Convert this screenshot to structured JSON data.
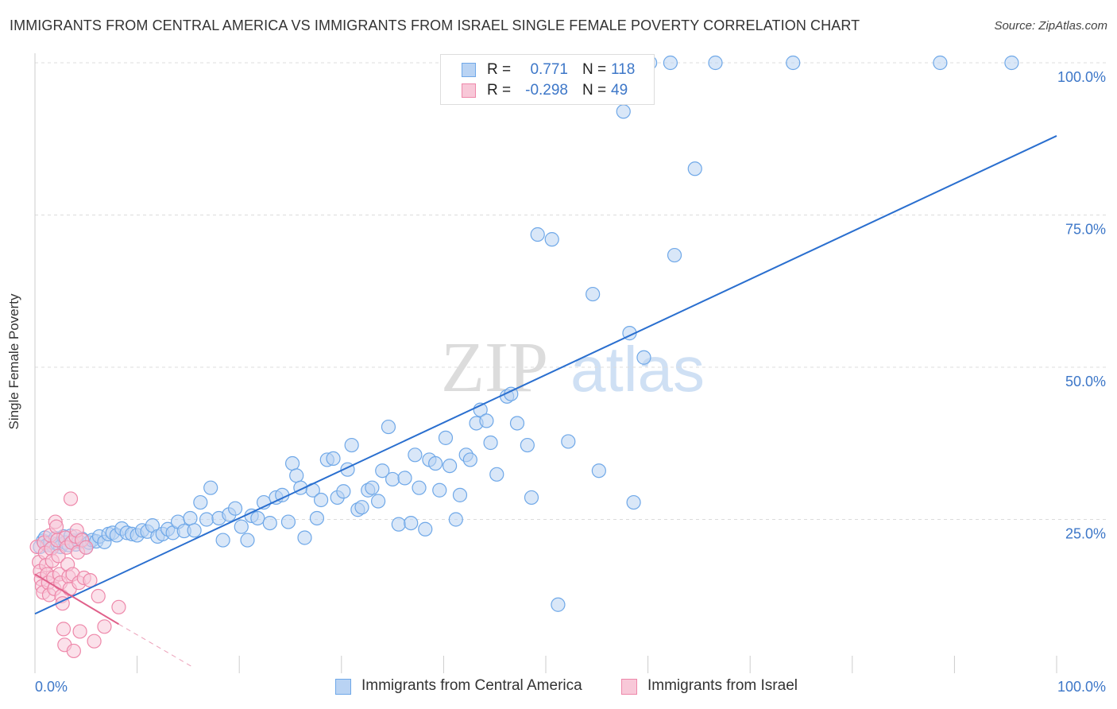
{
  "title": "IMMIGRANTS FROM CENTRAL AMERICA VS IMMIGRANTS FROM ISRAEL SINGLE FEMALE POVERTY CORRELATION CHART",
  "source": "Source: ZipAtlas.com",
  "watermark": {
    "zip": "ZIP",
    "atlas": "atlas"
  },
  "stats": [
    {
      "r_label": "R =",
      "r_value": "0.771",
      "n_label": "N =",
      "n_value": "118",
      "color": "#6fa8e8",
      "fill": "#b9d3f3"
    },
    {
      "r_label": "R =",
      "r_value": "-0.298",
      "n_label": "N =",
      "n_value": "49",
      "color": "#ee88aa",
      "fill": "#f8c8d8"
    }
  ],
  "legend": [
    {
      "label": "Immigrants from Central America",
      "color": "#6fa8e8",
      "fill": "#b9d3f3"
    },
    {
      "label": "Immigrants from Israel",
      "color": "#ee88aa",
      "fill": "#f8c8d8"
    }
  ],
  "chart_data": {
    "type": "scatter",
    "title": "IMMIGRANTS FROM CENTRAL AMERICA VS IMMIGRANTS FROM ISRAEL SINGLE FEMALE POVERTY CORRELATION CHART",
    "xlabel": "",
    "ylabel": "Single Female Poverty",
    "xlim": [
      0,
      100
    ],
    "ylim": [
      0,
      100
    ],
    "x_tick_labels": [
      "0.0%",
      "100.0%"
    ],
    "y_tick_labels": [
      "25.0%",
      "50.0%",
      "75.0%",
      "100.0%"
    ],
    "y_ticks": [
      25,
      50,
      75,
      100
    ],
    "grid": true,
    "legend_position": "bottom",
    "series": [
      {
        "name": "Immigrants from Central America",
        "color": "#6fa8e8",
        "fill": "#b9d3f3",
        "trend": {
          "x": [
            0,
            100
          ],
          "y": [
            9.5,
            88.0
          ],
          "color": "#2a6fcf"
        },
        "points": [
          [
            0.5,
            20.5
          ],
          [
            0.8,
            21.5
          ],
          [
            1.0,
            22.0
          ],
          [
            1.2,
            20.8
          ],
          [
            1.5,
            21.2
          ],
          [
            1.8,
            20.6
          ],
          [
            2.0,
            21.9
          ],
          [
            2.2,
            21.0
          ],
          [
            2.5,
            20.5
          ],
          [
            2.8,
            22.2
          ],
          [
            3.0,
            21.2
          ],
          [
            3.3,
            20.8
          ],
          [
            3.5,
            22.3
          ],
          [
            3.8,
            21.5
          ],
          [
            4.0,
            20.9
          ],
          [
            4.3,
            21.4
          ],
          [
            4.6,
            21.8
          ],
          [
            5.0,
            20.4
          ],
          [
            5.3,
            21.2
          ],
          [
            5.6,
            21.6
          ],
          [
            6.0,
            21.4
          ],
          [
            6.3,
            22.2
          ],
          [
            6.8,
            21.3
          ],
          [
            7.2,
            22.6
          ],
          [
            7.6,
            22.8
          ],
          [
            8.0,
            22.4
          ],
          [
            8.5,
            23.5
          ],
          [
            9.0,
            22.8
          ],
          [
            9.5,
            22.6
          ],
          [
            10.0,
            22.4
          ],
          [
            10.5,
            23.2
          ],
          [
            11.0,
            23.0
          ],
          [
            11.5,
            24.0
          ],
          [
            12.0,
            22.2
          ],
          [
            12.5,
            22.6
          ],
          [
            13.0,
            23.4
          ],
          [
            13.5,
            22.8
          ],
          [
            14.0,
            24.6
          ],
          [
            14.6,
            23.1
          ],
          [
            15.2,
            25.2
          ],
          [
            15.6,
            23.2
          ],
          [
            16.2,
            27.8
          ],
          [
            16.8,
            25.0
          ],
          [
            17.2,
            30.2
          ],
          [
            18.0,
            25.2
          ],
          [
            18.4,
            21.6
          ],
          [
            19.0,
            25.8
          ],
          [
            19.6,
            26.8
          ],
          [
            20.2,
            23.8
          ],
          [
            20.8,
            21.6
          ],
          [
            21.2,
            25.6
          ],
          [
            21.8,
            25.2
          ],
          [
            22.4,
            27.8
          ],
          [
            23.0,
            24.4
          ],
          [
            23.6,
            28.6
          ],
          [
            24.2,
            29.0
          ],
          [
            24.8,
            24.6
          ],
          [
            25.2,
            34.2
          ],
          [
            25.6,
            32.2
          ],
          [
            26.0,
            30.2
          ],
          [
            26.4,
            22.0
          ],
          [
            27.2,
            29.8
          ],
          [
            27.6,
            25.2
          ],
          [
            28.0,
            28.2
          ],
          [
            28.6,
            34.8
          ],
          [
            29.2,
            35.0
          ],
          [
            29.6,
            28.6
          ],
          [
            30.2,
            29.6
          ],
          [
            30.6,
            33.2
          ],
          [
            31.0,
            37.2
          ],
          [
            31.6,
            26.6
          ],
          [
            32.0,
            27.0
          ],
          [
            32.6,
            29.8
          ],
          [
            33.0,
            30.2
          ],
          [
            33.6,
            28.0
          ],
          [
            34.0,
            33.0
          ],
          [
            34.6,
            40.2
          ],
          [
            35.0,
            31.6
          ],
          [
            35.6,
            24.2
          ],
          [
            36.2,
            31.8
          ],
          [
            36.8,
            24.4
          ],
          [
            37.2,
            35.6
          ],
          [
            37.6,
            30.2
          ],
          [
            38.2,
            23.4
          ],
          [
            38.6,
            34.8
          ],
          [
            39.2,
            34.2
          ],
          [
            39.6,
            29.8
          ],
          [
            40.2,
            38.4
          ],
          [
            40.6,
            33.8
          ],
          [
            41.2,
            25.0
          ],
          [
            41.6,
            29.0
          ],
          [
            42.2,
            35.6
          ],
          [
            42.6,
            34.8
          ],
          [
            43.2,
            40.8
          ],
          [
            43.6,
            43.0
          ],
          [
            44.2,
            41.2
          ],
          [
            44.6,
            37.6
          ],
          [
            45.2,
            32.4
          ],
          [
            46.2,
            45.2
          ],
          [
            46.6,
            45.6
          ],
          [
            47.2,
            40.8
          ],
          [
            48.2,
            37.2
          ],
          [
            48.6,
            28.6
          ],
          [
            49.2,
            71.8
          ],
          [
            50.6,
            71.0
          ],
          [
            51.2,
            11.0
          ],
          [
            52.2,
            37.8
          ],
          [
            54.6,
            62.0
          ],
          [
            55.2,
            33.0
          ],
          [
            57.6,
            92.0
          ],
          [
            58.2,
            55.6
          ],
          [
            58.6,
            27.8
          ],
          [
            59.6,
            51.6
          ],
          [
            60.2,
            100.0
          ],
          [
            62.2,
            100.0
          ],
          [
            62.6,
            68.4
          ],
          [
            64.6,
            82.6
          ],
          [
            66.6,
            100.0
          ],
          [
            74.2,
            100.0
          ],
          [
            88.6,
            100.0
          ],
          [
            95.6,
            100.0
          ]
        ]
      },
      {
        "name": "Immigrants from Israel",
        "color": "#ee88aa",
        "fill": "#f8c8d8",
        "trend": {
          "x": [
            0,
            8.2
          ],
          "y": [
            16.0,
            7.8
          ],
          "dashed_to": [
            15.6,
            0.6
          ],
          "color": "#e0608a"
        },
        "points": [
          [
            0.2,
            20.5
          ],
          [
            0.4,
            18.0
          ],
          [
            0.5,
            16.5
          ],
          [
            0.6,
            15.2
          ],
          [
            0.7,
            14.0
          ],
          [
            0.8,
            13.0
          ],
          [
            0.9,
            21.2
          ],
          [
            1.0,
            19.5
          ],
          [
            1.1,
            17.5
          ],
          [
            1.2,
            16.0
          ],
          [
            1.3,
            14.6
          ],
          [
            1.4,
            12.6
          ],
          [
            1.5,
            22.4
          ],
          [
            1.6,
            20.2
          ],
          [
            1.7,
            18.2
          ],
          [
            1.8,
            15.4
          ],
          [
            1.9,
            13.6
          ],
          [
            2.0,
            24.6
          ],
          [
            2.1,
            23.8
          ],
          [
            2.2,
            21.6
          ],
          [
            2.3,
            19.0
          ],
          [
            2.4,
            16.0
          ],
          [
            2.5,
            14.6
          ],
          [
            2.6,
            12.4
          ],
          [
            2.7,
            11.2
          ],
          [
            2.8,
            7.0
          ],
          [
            2.9,
            4.4
          ],
          [
            3.0,
            22.0
          ],
          [
            3.1,
            20.4
          ],
          [
            3.2,
            17.6
          ],
          [
            3.3,
            15.6
          ],
          [
            3.4,
            13.6
          ],
          [
            3.5,
            28.4
          ],
          [
            3.6,
            21.2
          ],
          [
            3.7,
            16.0
          ],
          [
            3.8,
            3.4
          ],
          [
            4.0,
            22.2
          ],
          [
            4.1,
            23.2
          ],
          [
            4.2,
            19.6
          ],
          [
            4.3,
            14.6
          ],
          [
            4.4,
            6.6
          ],
          [
            4.6,
            21.6
          ],
          [
            4.8,
            15.4
          ],
          [
            5.0,
            20.4
          ],
          [
            5.4,
            15.0
          ],
          [
            5.8,
            5.0
          ],
          [
            6.2,
            12.4
          ],
          [
            6.8,
            7.4
          ],
          [
            8.2,
            10.6
          ]
        ]
      }
    ]
  }
}
